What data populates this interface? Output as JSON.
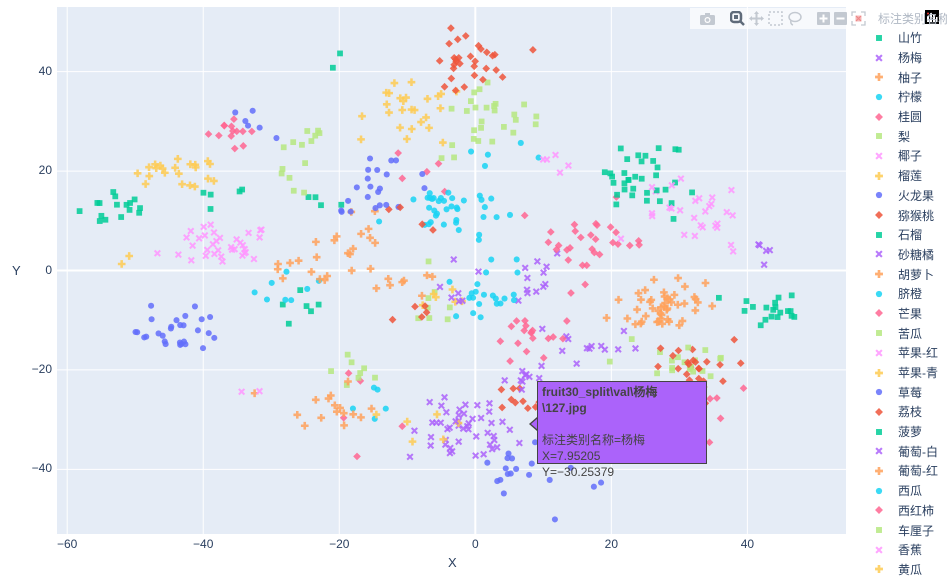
{
  "modebar": {
    "buttons": [
      {
        "name": "camera-icon",
        "title": "Download plot as png"
      },
      {
        "name": "zoom-icon",
        "title": "Zoom"
      },
      {
        "name": "pan-icon",
        "title": "Pan"
      },
      {
        "name": "box-select-icon",
        "title": "Box Select"
      },
      {
        "name": "lasso-select-icon",
        "title": "Lasso Select"
      },
      {
        "name": "zoom-in-icon",
        "title": "Zoom in"
      },
      {
        "name": "zoom-out-icon",
        "title": "Zoom out"
      },
      {
        "name": "autoscale-icon",
        "title": "Autoscale"
      }
    ]
  },
  "legend": {
    "title": "标注类别名称"
  },
  "tooltip": {
    "title": "fruit30_split\\val\\杨梅\\127.jpg",
    "line1": "标注类别名称=杨梅",
    "line2": "X=7.95205",
    "line3": "Y=−30.25379",
    "color": "#ab63fa"
  },
  "chart_data": {
    "type": "scatter",
    "title": "",
    "xlabel": "X",
    "ylabel": "Y",
    "xlim": [
      -61.5,
      54.5
    ],
    "ylim": [
      -53,
      53
    ],
    "xticks": [
      -60,
      -40,
      -20,
      0,
      20,
      40
    ],
    "yticks": [
      -40,
      -20,
      0,
      20,
      40
    ],
    "grid": true,
    "legend_position": "right",
    "legend_title": "标注类别名称",
    "series": [
      {
        "name": "山竹",
        "color": "#00cc96",
        "symbol": "square",
        "clusters": [
          [
            -52,
            13,
            3,
            2,
            14
          ],
          [
            -38,
            15,
            3,
            1,
            5
          ],
          [
            -22,
            15,
            2,
            1,
            4
          ],
          [
            -25,
            -8,
            2,
            2,
            6
          ],
          [
            25,
            20,
            3,
            3,
            22
          ],
          [
            42,
            -8,
            3,
            2,
            14
          ],
          [
            -20,
            42,
            1,
            1,
            2
          ]
        ]
      },
      {
        "name": "杨梅",
        "color": "#ab63fa",
        "symbol": "x",
        "clusters": [
          [
            -2,
            -33,
            4,
            3,
            40
          ],
          [
            16,
            -15,
            4,
            3,
            14
          ],
          [
            6,
            -1,
            4,
            3,
            14
          ],
          [
            42,
            3,
            1,
            2,
            5
          ]
        ]
      },
      {
        "name": "柚子",
        "color": "#FFA15A",
        "symbol": "cross",
        "clusters": [
          [
            28,
            -7,
            4,
            3,
            35
          ],
          [
            -22,
            -27,
            3,
            2,
            12
          ],
          [
            -18,
            5,
            4,
            3,
            14
          ],
          [
            -10,
            -2,
            3,
            2,
            8
          ]
        ]
      },
      {
        "name": "柠檬",
        "color": "#19d3f3",
        "symbol": "circle",
        "clusters": [
          [
            -6,
            12,
            4,
            3,
            22
          ],
          [
            2,
            -3,
            2,
            3,
            14
          ],
          [
            -28,
            -3,
            3,
            3,
            8
          ],
          [
            -14,
            -27,
            2,
            2,
            5
          ],
          [
            4,
            21,
            3,
            2,
            6
          ]
        ]
      },
      {
        "name": "桂圆",
        "color": "#FF6692",
        "symbol": "diamond",
        "clusters": [
          [
            16,
            6,
            5,
            4,
            24
          ],
          [
            8,
            -14,
            3,
            2,
            10
          ],
          [
            -36,
            28,
            2,
            2,
            10
          ],
          [
            -20,
            -30,
            5,
            4,
            5
          ],
          [
            -9,
            21,
            2,
            2,
            5
          ]
        ]
      },
      {
        "name": "梨",
        "color": "#B6E880",
        "symbol": "square",
        "clusters": [
          [
            1,
            30,
            3,
            4,
            16
          ],
          [
            -25,
            26,
            2,
            2,
            8
          ],
          [
            30,
            -18,
            5,
            5,
            16
          ],
          [
            -17,
            -20,
            2,
            3,
            8
          ],
          [
            -6,
            -8,
            2,
            3,
            8
          ],
          [
            -27,
            19,
            2,
            2,
            6
          ]
        ]
      },
      {
        "name": "椰子",
        "color": "#FF97FF",
        "symbol": "x",
        "clusters": [
          [
            -38,
            5,
            4,
            2,
            22
          ],
          [
            32,
            10,
            4,
            4,
            18
          ],
          [
            12,
            23,
            2,
            2,
            5
          ],
          [
            -34,
            -24,
            2,
            1,
            2
          ]
        ]
      },
      {
        "name": "榴莲",
        "color": "#FECB52",
        "symbol": "cross",
        "clusters": [
          [
            -45,
            20,
            4,
            1,
            12
          ],
          [
            -10,
            34,
            3,
            3,
            16
          ],
          [
            -3,
            -5,
            3,
            2,
            6
          ],
          [
            -6,
            -31,
            3,
            2,
            6
          ],
          [
            -52,
            1,
            1,
            1,
            2
          ]
        ]
      },
      {
        "name": "火龙果",
        "color": "#636efa",
        "symbol": "circle",
        "clusters": [
          [
            -43,
            -12,
            3,
            2,
            22
          ],
          [
            -13,
            18,
            4,
            3,
            16
          ],
          [
            4,
            -40,
            3,
            2,
            12
          ],
          [
            14,
            -38,
            4,
            3,
            10
          ],
          [
            -34,
            30,
            2,
            2,
            6
          ]
        ]
      },
      {
        "name": "猕猴桃",
        "color": "#EF553B",
        "symbol": "diamond",
        "clusters": [
          [
            -1,
            42,
            3,
            3,
            24
          ],
          [
            32,
            -20,
            3,
            3,
            20
          ],
          [
            5,
            -27,
            3,
            2,
            10
          ],
          [
            -8,
            -10,
            2,
            3,
            5
          ],
          [
            -10,
            10,
            2,
            2,
            4
          ]
        ]
      },
      {
        "name": "石榴",
        "color": "#00cc96",
        "symbol": "square",
        "clusters": [
          [
            27,
            14,
            3,
            2,
            8
          ],
          [
            -55,
            10,
            1,
            1,
            2
          ]
        ]
      },
      {
        "name": "砂糖橘",
        "color": "#ab63fa",
        "symbol": "x",
        "clusters": [
          [
            8,
            -22,
            4,
            2,
            10
          ],
          [
            -3,
            -5,
            2,
            2,
            5
          ]
        ]
      },
      {
        "name": "胡萝卜",
        "color": "#FFA15A",
        "symbol": "cross",
        "clusters": [
          [
            -25,
            0,
            4,
            2,
            10
          ],
          [
            31,
            -4,
            3,
            2,
            6
          ]
        ]
      },
      {
        "name": "脐橙",
        "color": "#19d3f3",
        "symbol": "circle",
        "clusters": [
          [
            -5,
            14,
            3,
            2,
            8
          ],
          [
            0,
            -6,
            2,
            2,
            4
          ]
        ]
      },
      {
        "name": "芒果",
        "color": "#FF6692",
        "symbol": "diamond",
        "clusters": [
          [
            10,
            -12,
            3,
            2,
            8
          ],
          [
            35,
            -26,
            3,
            3,
            6
          ]
        ]
      },
      {
        "name": "苦瓜",
        "color": "#B6E880",
        "symbol": "square",
        "clusters": [
          [
            8,
            31,
            2,
            2,
            6
          ],
          [
            32,
            -25,
            3,
            3,
            6
          ]
        ]
      },
      {
        "name": "苹果-红",
        "color": "#FF97FF",
        "symbol": "x",
        "clusters": [
          [
            -38,
            3,
            3,
            2,
            8
          ],
          [
            33,
            8,
            3,
            3,
            6
          ]
        ]
      },
      {
        "name": "苹果-青",
        "color": "#FECB52",
        "symbol": "cross",
        "clusters": [
          [
            -42,
            18,
            3,
            1,
            6
          ],
          [
            -8,
            30,
            3,
            3,
            6
          ]
        ]
      },
      {
        "name": "草莓",
        "color": "#636efa",
        "symbol": "circle",
        "clusters": [
          [
            -45,
            -10,
            2,
            2,
            6
          ],
          [
            -14,
            15,
            3,
            2,
            6
          ]
        ]
      },
      {
        "name": "荔枝",
        "color": "#EF553B",
        "symbol": "diamond",
        "clusters": [
          [
            0,
            40,
            2,
            2,
            6
          ],
          [
            30,
            -17,
            3,
            2,
            6
          ]
        ]
      },
      {
        "name": "菠萝",
        "color": "#00cc96",
        "symbol": "square",
        "clusters": [
          [
            23,
            17,
            2,
            2,
            5
          ],
          [
            44,
            -9,
            2,
            1,
            5
          ]
        ]
      },
      {
        "name": "葡萄-白",
        "color": "#ab63fa",
        "symbol": "x",
        "clusters": [
          [
            -1,
            -30,
            3,
            3,
            8
          ]
        ]
      },
      {
        "name": "葡萄-红",
        "color": "#FFA15A",
        "symbol": "cross",
        "clusters": [
          [
            27,
            -9,
            3,
            2,
            6
          ],
          [
            -20,
            -27,
            2,
            2,
            4
          ]
        ]
      },
      {
        "name": "西瓜",
        "color": "#19d3f3",
        "symbol": "circle",
        "clusters": [
          [
            -3,
            10,
            3,
            2,
            6
          ],
          [
            3,
            -4,
            2,
            2,
            4
          ]
        ]
      },
      {
        "name": "西红柿",
        "color": "#FF6692",
        "symbol": "diamond",
        "clusters": [
          [
            17,
            4,
            3,
            3,
            6
          ],
          [
            -36,
            27,
            2,
            2,
            3
          ]
        ]
      },
      {
        "name": "车厘子",
        "color": "#B6E880",
        "symbol": "square",
        "clusters": [
          [
            -1,
            28,
            2,
            3,
            5
          ],
          [
            30,
            -20,
            3,
            3,
            5
          ]
        ]
      },
      {
        "name": "香蕉",
        "color": "#FF97FF",
        "symbol": "x",
        "clusters": [
          [
            -37,
            6,
            3,
            2,
            5
          ],
          [
            31,
            11,
            3,
            3,
            5
          ]
        ]
      },
      {
        "name": "黄瓜",
        "color": "#FECB52",
        "symbol": "cross",
        "clusters": [
          [
            -46,
            21,
            3,
            1,
            4
          ],
          [
            -9,
            33,
            3,
            3,
            4
          ]
        ]
      }
    ]
  }
}
